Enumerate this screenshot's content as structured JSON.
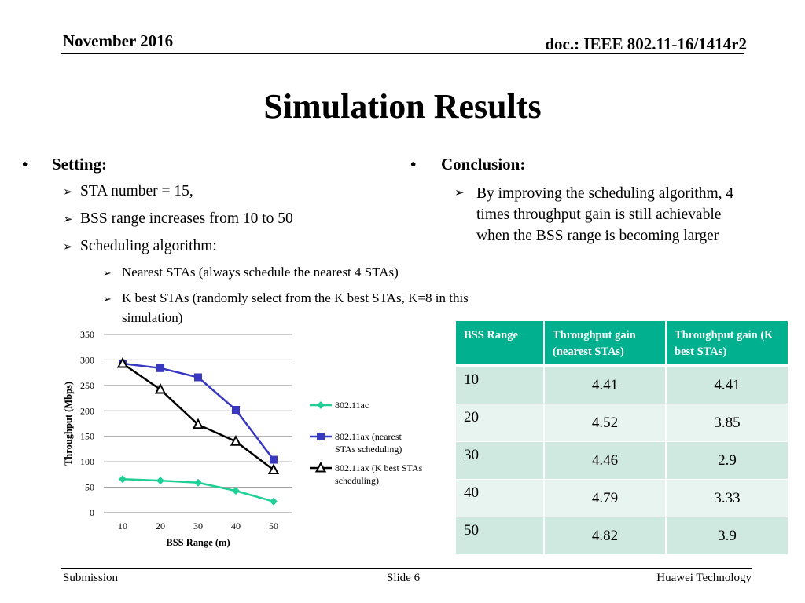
{
  "header": {
    "date": "November 2016",
    "doc": "doc.: IEEE 802.11-16/1414r2"
  },
  "title": "Simulation Results",
  "setting": {
    "bullet": "•",
    "title": "Setting:",
    "items": [
      "STA number = 15,",
      "BSS range increases from 10 to 50",
      "Scheduling algorithm:"
    ],
    "subitems": [
      "Nearest STAs (always schedule the nearest 4 STAs)",
      "K best STAs (randomly select from the K best STAs, K=8 in this simulation)"
    ]
  },
  "conclusion": {
    "bullet": "•",
    "title": "Conclusion:",
    "text": "By improving the scheduling algorithm, 4 times throughput gain is still achievable when the BSS range is becoming larger"
  },
  "table": {
    "headers": [
      "BSS Range",
      "Throughput gain (nearest STAs)",
      "Throughput gain (K best STAs)"
    ],
    "rows": [
      [
        "10",
        "4.41",
        "4.41"
      ],
      [
        "20",
        "4.52",
        "3.85"
      ],
      [
        "30",
        "4.46",
        "2.9"
      ],
      [
        "40",
        "4.79",
        "3.33"
      ],
      [
        "50",
        "4.82",
        "3.9"
      ]
    ]
  },
  "chart_data": {
    "type": "line",
    "title": "",
    "xlabel": "BSS Range (m)",
    "ylabel": "Throughput (Mbps)",
    "x": [
      10,
      20,
      30,
      40,
      50
    ],
    "ylim": [
      0,
      350
    ],
    "yticks": [
      0,
      50,
      100,
      150,
      200,
      250,
      300,
      350
    ],
    "grid": true,
    "legend": "right",
    "series": [
      {
        "name": "802.11ac",
        "values": [
          66,
          63,
          59,
          43,
          22
        ],
        "color": "#1fcf96",
        "marker": "diamond"
      },
      {
        "name": "802.11ax (nearest STAs scheduling)",
        "values": [
          293,
          284,
          266,
          202,
          104
        ],
        "color": "#3838c0",
        "marker": "square"
      },
      {
        "name": "802.11ax (K best STAs scheduling)",
        "values": [
          293,
          242,
          173,
          140,
          84
        ],
        "color": "#000000",
        "marker": "triangle"
      }
    ]
  },
  "footer": {
    "left": "Submission",
    "center": "Slide 6",
    "right": "Huawei Technology"
  }
}
